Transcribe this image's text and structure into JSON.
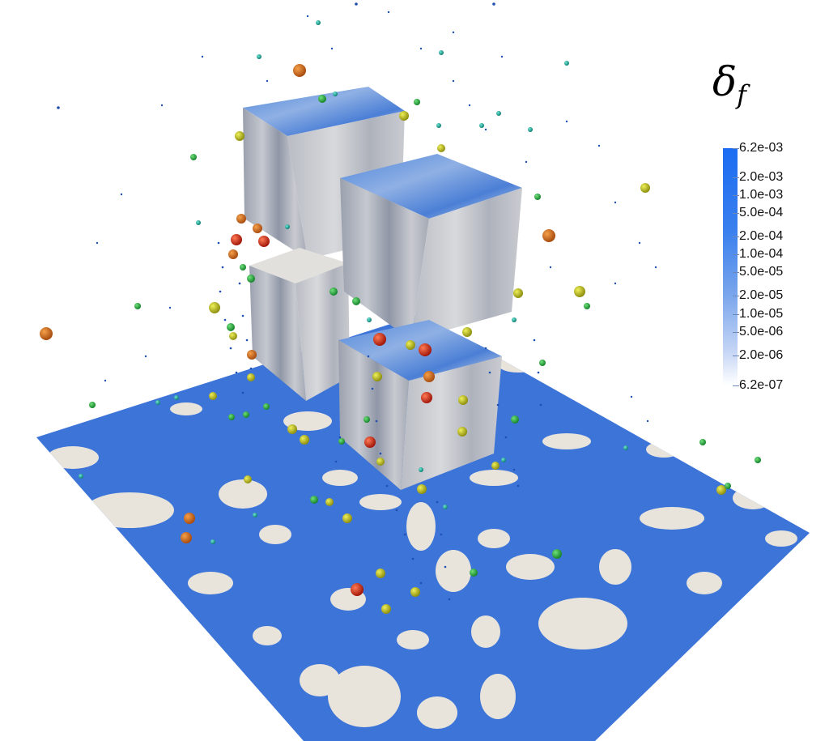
{
  "legend": {
    "symbol": "δ",
    "subscript": "f",
    "ticks": [
      {
        "label": "6.2e-03",
        "value": 0.0062
      },
      {
        "label": "2.0e-03",
        "value": 0.002
      },
      {
        "label": "1.0e-03",
        "value": 0.001
      },
      {
        "label": "5.0e-04",
        "value": 0.0005
      },
      {
        "label": "2.0e-04",
        "value": 0.0002
      },
      {
        "label": "1.0e-04",
        "value": 0.0001
      },
      {
        "label": "5.0e-05",
        "value": 5e-05
      },
      {
        "label": "2.0e-05",
        "value": 2e-05
      },
      {
        "label": "1.0e-05",
        "value": 1e-05
      },
      {
        "label": "5.0e-06",
        "value": 5e-06
      },
      {
        "label": "2.0e-06",
        "value": 2e-06
      },
      {
        "label": "6.2e-07",
        "value": 6.2e-07
      }
    ],
    "min": 6.2e-07,
    "max": 0.0062,
    "scale": "log",
    "colors": {
      "high": "#1b6cf2",
      "low": "#ffffff"
    }
  },
  "scene_colors": {
    "ground_blue": "#3a72d6",
    "ground_light": "#e7e3da",
    "cube_gray": "#aeb3bd",
    "particle_red": "#d42a12",
    "particle_orange": "#d9731c",
    "particle_yellow": "#c9c81c",
    "particle_green": "#2fb446",
    "particle_teal": "#1ab6a2"
  }
}
